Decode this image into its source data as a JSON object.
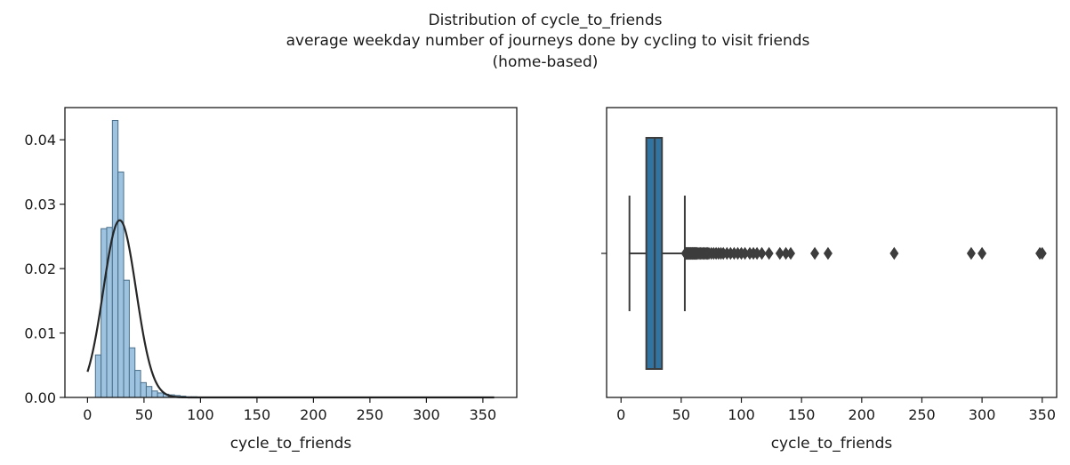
{
  "figure": {
    "title_lines": [
      "Distribution of cycle_to_friends",
      "average weekday number of journeys done by cycling to visit friends",
      "(home-based)"
    ]
  },
  "chart_data": [
    {
      "type": "bar",
      "subtype": "histogram-with-fitted-normal",
      "xlabel": "cycle_to_friends",
      "ylabel": "",
      "xlim": [
        -20,
        380
      ],
      "ylim": [
        0,
        0.045
      ],
      "x_ticks": [
        0,
        50,
        100,
        150,
        200,
        250,
        300,
        350
      ],
      "y_ticks": [
        0.0,
        0.01,
        0.02,
        0.03,
        0.04
      ],
      "y_tick_labels": [
        "0.00",
        "0.01",
        "0.02",
        "0.03",
        "0.04"
      ],
      "bin_width": 5,
      "bins": [
        {
          "x0": 7,
          "density": 0.0066
        },
        {
          "x0": 12,
          "density": 0.0262
        },
        {
          "x0": 17,
          "density": 0.0264
        },
        {
          "x0": 22,
          "density": 0.043
        },
        {
          "x0": 27,
          "density": 0.035
        },
        {
          "x0": 32,
          "density": 0.0182
        },
        {
          "x0": 37,
          "density": 0.0077
        },
        {
          "x0": 42,
          "density": 0.0042
        },
        {
          "x0": 47,
          "density": 0.0023
        },
        {
          "x0": 52,
          "density": 0.0017
        },
        {
          "x0": 57,
          "density": 0.001
        },
        {
          "x0": 62,
          "density": 0.0007
        },
        {
          "x0": 67,
          "density": 0.0005
        },
        {
          "x0": 72,
          "density": 0.0004
        },
        {
          "x0": 77,
          "density": 0.0003
        },
        {
          "x0": 82,
          "density": 0.0002
        },
        {
          "x0": 87,
          "density": 0.0001
        },
        {
          "x0": 92,
          "density": 0.0001
        }
      ],
      "normal_fit": {
        "mean": 28.5,
        "std": 14.5,
        "x_range": [
          0,
          360
        ]
      },
      "colors": {
        "bar_fill": "#9dc3e0",
        "bar_edge": "#4a6f8a",
        "curve": "#262626"
      }
    },
    {
      "type": "boxplot",
      "xlabel": "cycle_to_friends",
      "xlim": [
        -12,
        362
      ],
      "x_ticks": [
        0,
        50,
        100,
        150,
        200,
        250,
        300,
        350
      ],
      "whisker_low": 7,
      "q1": 21,
      "median": 28,
      "q3": 34,
      "whisker_high": 53,
      "outliers": [
        53.5,
        54,
        54.5,
        55,
        55.5,
        56,
        56.5,
        57,
        57.5,
        58,
        58.5,
        59,
        59.5,
        60,
        60.5,
        61,
        61.5,
        62,
        62.5,
        63,
        64,
        65,
        66,
        67,
        68,
        69,
        70,
        71,
        72,
        73,
        75,
        77,
        79,
        81,
        83,
        85,
        88,
        91,
        94,
        97,
        100,
        103,
        107,
        110,
        113,
        117,
        123,
        132,
        137,
        141,
        161,
        172,
        227,
        291,
        300,
        348,
        350
      ],
      "colors": {
        "box_fill": "#3274a1",
        "edge": "#3d3d3d"
      }
    }
  ]
}
